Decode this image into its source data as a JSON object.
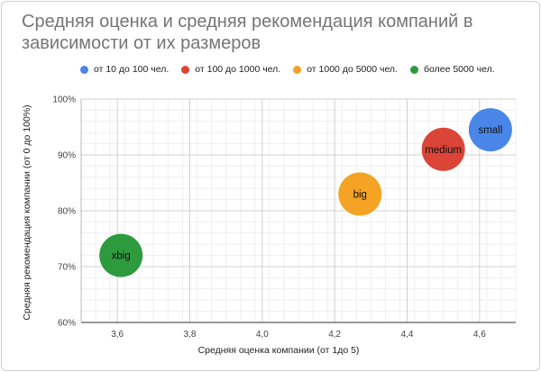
{
  "title": "Средняя оценка и средняя рекомендация компаний в зависимости от их размеров",
  "legend": [
    {
      "label": "от 10 до 100 чел.",
      "color": "#4A86E8"
    },
    {
      "label": "от 100 до 1000 чел.",
      "color": "#DB4437"
    },
    {
      "label": "от 1000 до 5000 чел.",
      "color": "#F4A325"
    },
    {
      "label": "более 5000 чел.",
      "color": "#2E9A3E"
    }
  ],
  "chart_data": {
    "type": "scatter",
    "title": "Средняя оценка и средняя рекомендация компаний в зависимости от их размеров",
    "xlabel": "Средняя оценка компании (от 1до 5)",
    "ylabel": "Средняя рекомендация компании (от 0 до 100%)",
    "xlim": [
      3.5,
      4.7
    ],
    "ylim": [
      60,
      100
    ],
    "x_ticks": [
      "3,6",
      "3,8",
      "4,0",
      "4,2",
      "4,4",
      "4,6"
    ],
    "y_ticks": [
      "60%",
      "70%",
      "80%",
      "90%",
      "100%"
    ],
    "grid": true,
    "legend_position": "top",
    "series": [
      {
        "name": "от 10 до 100 чел.",
        "color": "#4A86E8",
        "points": [
          {
            "x": 4.63,
            "y": 94.5,
            "label": "small"
          }
        ]
      },
      {
        "name": "от 100 до 1000 чел.",
        "color": "#DB4437",
        "points": [
          {
            "x": 4.5,
            "y": 91,
            "label": "medium"
          }
        ]
      },
      {
        "name": "от 1000 до 5000 чел.",
        "color": "#F4A325",
        "points": [
          {
            "x": 4.27,
            "y": 83,
            "label": "big"
          }
        ]
      },
      {
        "name": "более 5000 чел.",
        "color": "#2E9A3E",
        "points": [
          {
            "x": 3.61,
            "y": 72,
            "label": "xbig"
          }
        ]
      }
    ]
  }
}
